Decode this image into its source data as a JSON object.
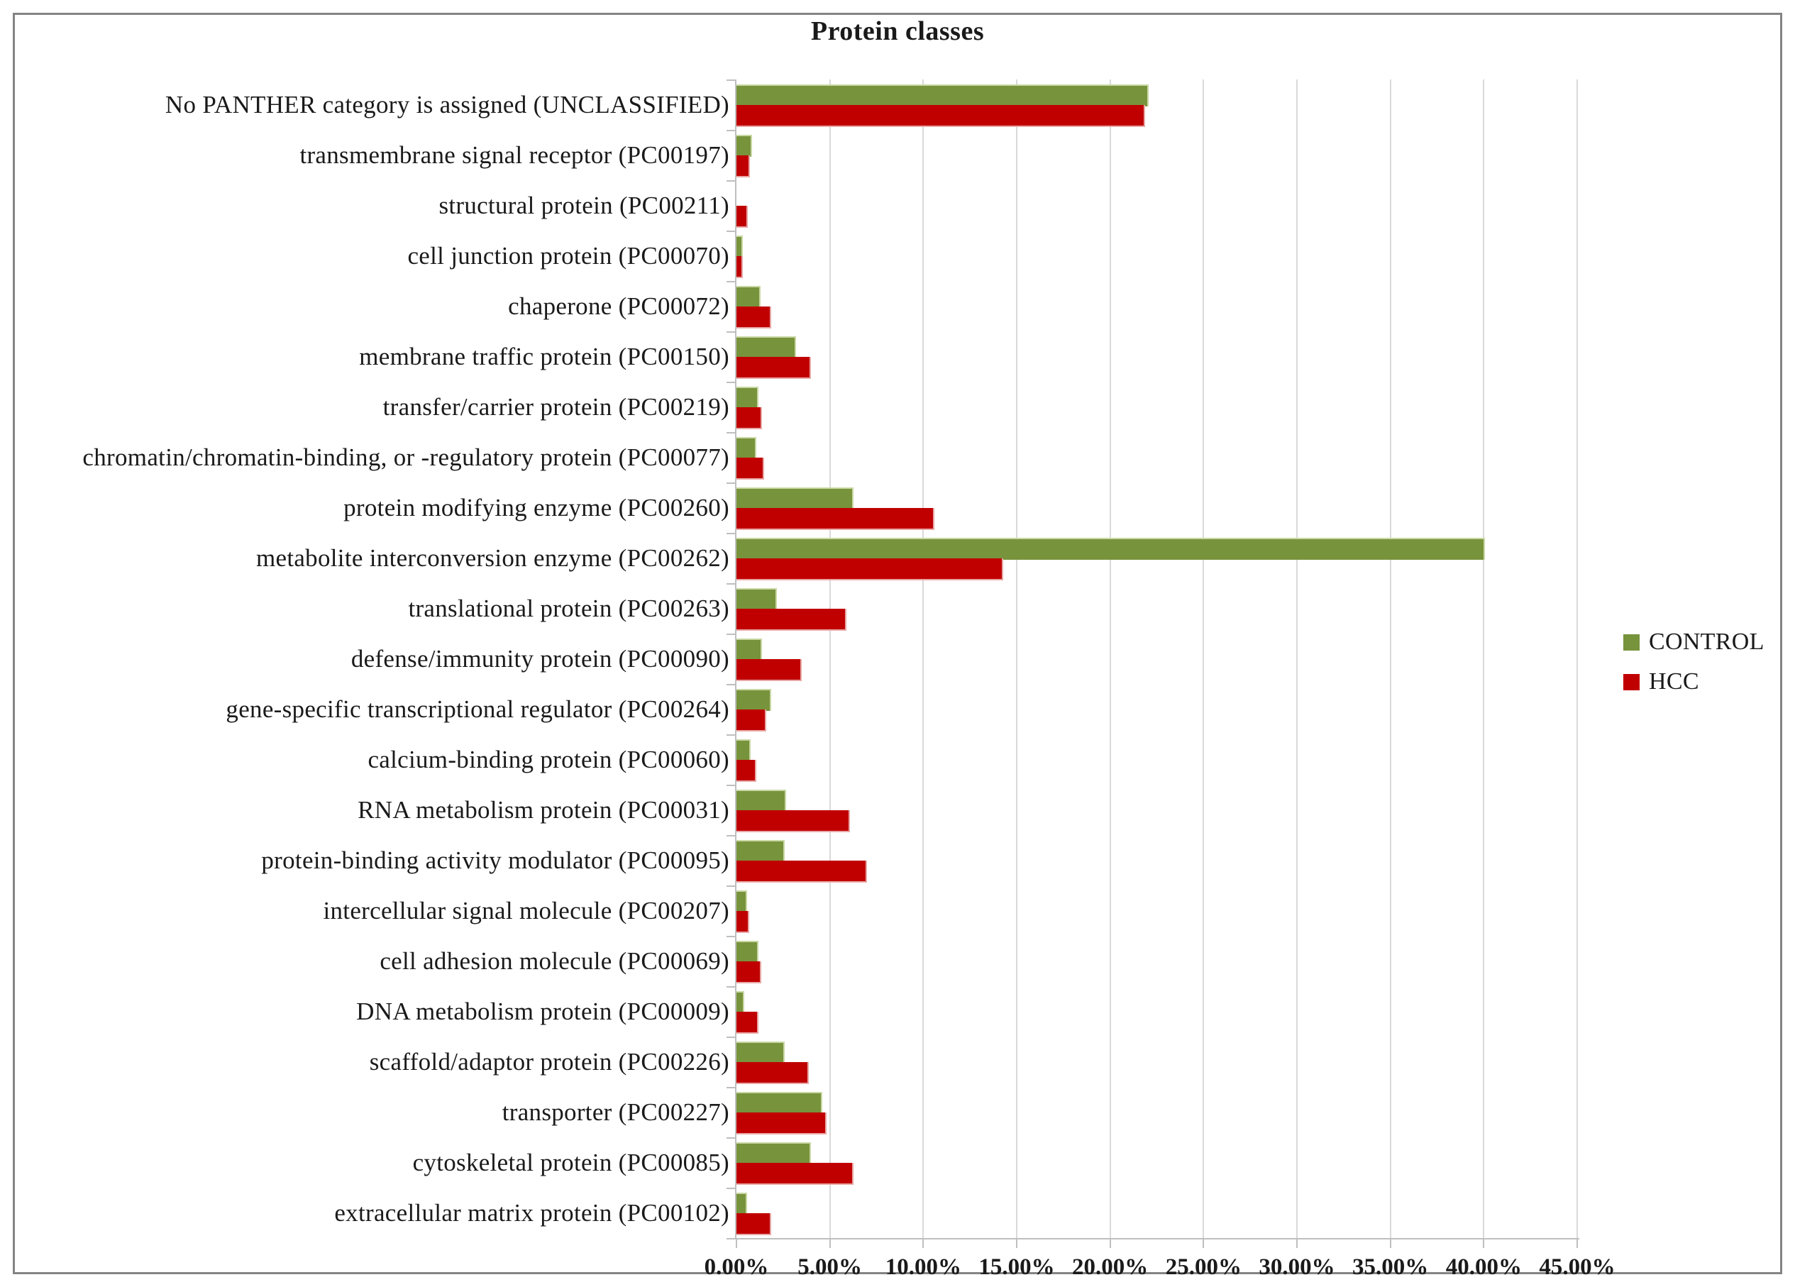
{
  "chart_data": {
    "type": "bar",
    "orientation": "horizontal",
    "title": "Protein classes",
    "categories": [
      "No PANTHER category is assigned (UNCLASSIFIED)",
      "transmembrane signal receptor (PC00197)",
      "structural protein (PC00211)",
      "cell junction protein (PC00070)",
      "chaperone (PC00072)",
      "membrane traffic protein (PC00150)",
      "transfer/carrier protein (PC00219)",
      "chromatin/chromatin-binding, or -regulatory protein (PC00077)",
      "protein modifying enzyme (PC00260)",
      "metabolite interconversion enzyme (PC00262)",
      "translational protein (PC00263)",
      "defense/immunity protein (PC00090)",
      "gene-specific transcriptional regulator (PC00264)",
      "calcium-binding protein (PC00060)",
      "RNA metabolism protein (PC00031)",
      "protein-binding activity modulator (PC00095)",
      "intercellular signal molecule (PC00207)",
      "cell adhesion molecule (PC00069)",
      "DNA metabolism protein (PC00009)",
      "scaffold/adaptor protein (PC00226)",
      "transporter (PC00227)",
      "cytoskeletal protein (PC00085)",
      "extracellular matrix protein (PC00102)"
    ],
    "series": [
      {
        "name": "CONTROL",
        "color": "#77933c",
        "values": [
          22.0,
          0.75,
          0,
          0.25,
          1.2,
          3.1,
          1.1,
          1.0,
          6.2,
          40.0,
          2.1,
          1.3,
          1.8,
          0.7,
          2.6,
          2.5,
          0.5,
          1.1,
          0.35,
          2.5,
          4.5,
          3.9,
          0.5
        ]
      },
      {
        "name": "HCC",
        "color": "#c00000",
        "values": [
          21.8,
          0.65,
          0.55,
          0.25,
          1.8,
          3.9,
          1.3,
          1.4,
          10.5,
          14.2,
          5.8,
          3.4,
          1.5,
          1.0,
          6.0,
          6.9,
          0.6,
          1.25,
          1.1,
          3.8,
          4.75,
          6.2,
          1.8
        ]
      }
    ],
    "x_axis": {
      "min": 0,
      "max": 45,
      "step": 5,
      "unit": "%",
      "tick_labels": [
        "0.00%",
        "5.00%",
        "10.00%",
        "15.00%",
        "20.00%",
        "25.00%",
        "30.00%",
        "35.00%",
        "40.00%",
        "45.00%"
      ]
    },
    "legend": {
      "position": "right",
      "entries": [
        "CONTROL",
        "HCC"
      ]
    },
    "grid": "vertical-gridlines-every-5-percent"
  },
  "colors": {
    "control_green": "#77933c",
    "hcc_red": "#c00000",
    "gridline": "#d9d9d9",
    "axis_line": "#bfbfbf",
    "frame_border": "#848484"
  }
}
